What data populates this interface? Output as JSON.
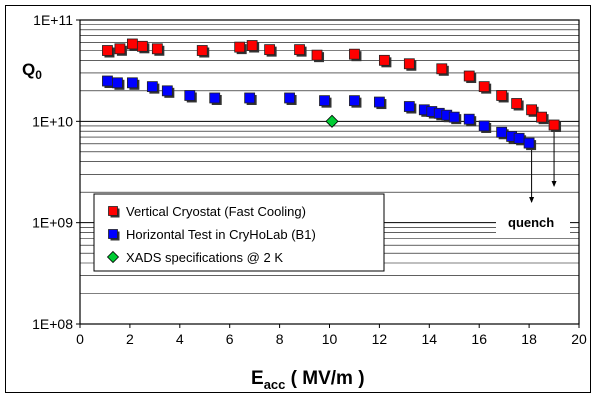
{
  "chart_data": {
    "type": "scatter",
    "y_scale": "log",
    "xlim": [
      0,
      20
    ],
    "ylim": [
      100000000.0,
      100000000000.0
    ],
    "x_ticks": [
      "0",
      "2",
      "4",
      "6",
      "8",
      "10",
      "12",
      "14",
      "16",
      "18",
      "20"
    ],
    "y_ticks": [
      "1E+08",
      "1E+09",
      "1E+10",
      "1E+11"
    ],
    "ylabel_main": "Q",
    "ylabel_sub": "0",
    "xlabel_main": "E",
    "xlabel_sub": "acc",
    "xlabel_unit": " ( MV/m )",
    "annotation": "quench",
    "legend_position": "lower-left",
    "grid": "horizontal minor and major",
    "series": [
      {
        "name": "Vertical Cryostat (Fast Cooling)",
        "color": "#ff0000",
        "marker": "square",
        "points": [
          [
            1.1,
            50000000000.0
          ],
          [
            1.6,
            52000000000.0
          ],
          [
            2.1,
            58000000000.0
          ],
          [
            2.5,
            55000000000.0
          ],
          [
            3.1,
            52000000000.0
          ],
          [
            4.9,
            50000000000.0
          ],
          [
            6.4,
            54000000000.0
          ],
          [
            6.9,
            56000000000.0
          ],
          [
            7.6,
            51000000000.0
          ],
          [
            8.8,
            51000000000.0
          ],
          [
            9.5,
            45000000000.0
          ],
          [
            11.0,
            46000000000.0
          ],
          [
            12.2,
            40000000000.0
          ],
          [
            13.2,
            37000000000.0
          ],
          [
            14.5,
            33000000000.0
          ],
          [
            15.6,
            28000000000.0
          ],
          [
            16.2,
            22000000000.0
          ],
          [
            16.9,
            18000000000.0
          ],
          [
            17.5,
            15000000000.0
          ],
          [
            18.1,
            13000000000.0
          ],
          [
            18.5,
            11000000000.0
          ],
          [
            19.0,
            9200000000.0
          ]
        ]
      },
      {
        "name": "Horizontal Test in CryHoLab (B1)",
        "color": "#0000ff",
        "marker": "square",
        "points": [
          [
            1.1,
            25000000000.0
          ],
          [
            1.5,
            24000000000.0
          ],
          [
            2.1,
            24000000000.0
          ],
          [
            2.9,
            22000000000.0
          ],
          [
            3.5,
            20000000000.0
          ],
          [
            4.4,
            18000000000.0
          ],
          [
            5.4,
            17000000000.0
          ],
          [
            6.8,
            17000000000.0
          ],
          [
            8.4,
            17000000000.0
          ],
          [
            9.8,
            16000000000.0
          ],
          [
            11.0,
            16000000000.0
          ],
          [
            12.0,
            15500000000.0
          ],
          [
            13.2,
            14000000000.0
          ],
          [
            13.8,
            13000000000.0
          ],
          [
            14.1,
            12500000000.0
          ],
          [
            14.4,
            12000000000.0
          ],
          [
            14.7,
            11500000000.0
          ],
          [
            15.0,
            11000000000.0
          ],
          [
            15.6,
            10500000000.0
          ],
          [
            16.2,
            9000000000.0
          ],
          [
            16.9,
            7800000000.0
          ],
          [
            17.3,
            7100000000.0
          ],
          [
            17.6,
            6800000000.0
          ],
          [
            18.0,
            6100000000.0
          ]
        ]
      },
      {
        "name": "XADS specifications @ 2 K",
        "color": "#00cc33",
        "marker": "diamond",
        "points": [
          [
            10.1,
            10000000000.0
          ]
        ]
      }
    ],
    "quench_arrows": [
      {
        "x": 18.1,
        "from": 6100000000.0,
        "to": 1600000000.0
      },
      {
        "x": 19.0,
        "from": 9200000000.0,
        "to": 2300000000.0
      }
    ]
  }
}
